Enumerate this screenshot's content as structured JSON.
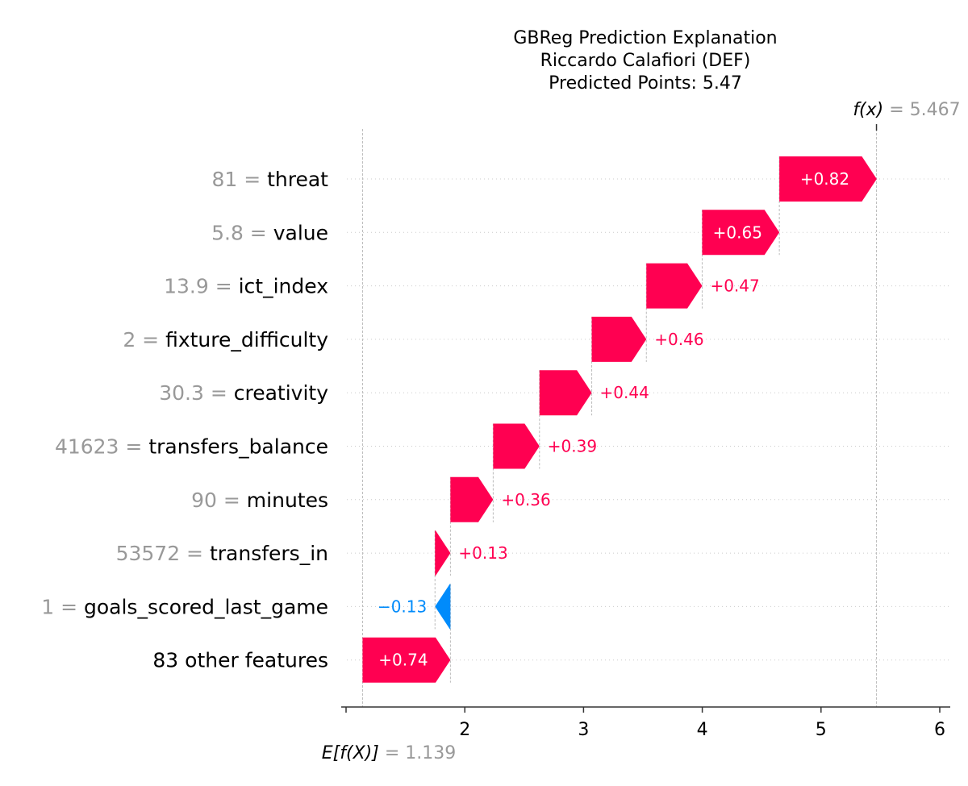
{
  "chart_data": {
    "type": "bar",
    "title": [
      "GBReg Prediction Explanation",
      "Riccardo Calafiori (DEF)",
      "Predicted Points: 5.47"
    ],
    "xlim": [
      1.0,
      6.2
    ],
    "xticks": [
      1,
      2,
      3,
      4,
      5,
      6
    ],
    "xtick_labels": [
      "",
      "2",
      "3",
      "4",
      "5",
      "6"
    ],
    "grid": "horizontal dotted",
    "base_value": 1.139,
    "base_label": "E[f(X)]",
    "base_value_text": "= 1.139",
    "output_value": 5.467,
    "output_label": "f(x)",
    "output_value_text": "= 5.467",
    "features": [
      {
        "value": "81",
        "name": "threat",
        "contribution": 0.82,
        "label": "+0.82"
      },
      {
        "value": "5.8",
        "name": "value",
        "contribution": 0.65,
        "label": "+0.65"
      },
      {
        "value": "13.9",
        "name": "ict_index",
        "contribution": 0.47,
        "label": "+0.47"
      },
      {
        "value": "2",
        "name": "fixture_difficulty",
        "contribution": 0.46,
        "label": "+0.46"
      },
      {
        "value": "30.3",
        "name": "creativity",
        "contribution": 0.44,
        "label": "+0.44"
      },
      {
        "value": "41623",
        "name": "transfers_balance",
        "contribution": 0.39,
        "label": "+0.39"
      },
      {
        "value": "90",
        "name": "minutes",
        "contribution": 0.36,
        "label": "+0.36"
      },
      {
        "value": "53572",
        "name": "transfers_in",
        "contribution": 0.13,
        "label": "+0.13"
      },
      {
        "value": "1",
        "name": "goals_scored_last_game",
        "contribution": -0.13,
        "label": "−0.13"
      },
      {
        "value": "",
        "name": "83 other features",
        "contribution": 0.74,
        "label": "+0.74"
      }
    ],
    "colors": {
      "positive": "#ff0051",
      "negative": "#008bfb",
      "value_text": "#999999",
      "grid": "#cccccc"
    }
  }
}
